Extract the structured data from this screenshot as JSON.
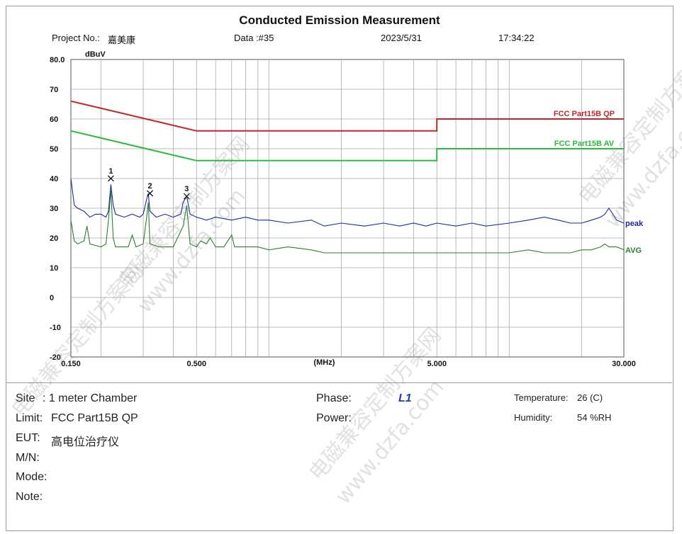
{
  "header": {
    "title": "Conducted Emission Measurement",
    "project_label": "Project No.:",
    "project_value": "嘉美康",
    "data_label": "Data :#35",
    "date": "2023/5/31",
    "time": "17:34:22"
  },
  "chart_data": {
    "type": "line",
    "title": "Conducted Emission Measurement",
    "ylabel": "dBuV",
    "xlabel": "(MHz)",
    "xscale": "log",
    "xlim": [
      0.15,
      30.0
    ],
    "ylim": [
      -20,
      80
    ],
    "y_ticks": [
      "80.0",
      "70",
      "60",
      "50",
      "40",
      "30",
      "20",
      "10",
      "0",
      "-10",
      "-20"
    ],
    "x_ticks": [
      {
        "value": 0.15,
        "label": "0.150"
      },
      {
        "value": 0.5,
        "label": "0.500"
      },
      {
        "value": 5.0,
        "label": "5.000"
      },
      {
        "value": 30.0,
        "label": "30.000"
      }
    ],
    "grid": true,
    "limits": [
      {
        "name": "FCC Part15B QP",
        "color": "#c0282d",
        "points": [
          [
            0.15,
            66
          ],
          [
            0.5,
            56
          ],
          [
            5.0,
            56
          ],
          [
            5.0,
            60
          ],
          [
            30.0,
            60
          ]
        ]
      },
      {
        "name": "FCC Part15B AV",
        "color": "#2dbb3e",
        "points": [
          [
            0.15,
            56
          ],
          [
            0.5,
            46
          ],
          [
            5.0,
            46
          ],
          [
            5.0,
            50
          ],
          [
            30.0,
            50
          ]
        ]
      }
    ],
    "series": [
      {
        "name": "peak",
        "color": "#1c2a9c",
        "points": [
          [
            0.15,
            40
          ],
          [
            0.155,
            31
          ],
          [
            0.16,
            30
          ],
          [
            0.17,
            29
          ],
          [
            0.18,
            27
          ],
          [
            0.19,
            28
          ],
          [
            0.2,
            28
          ],
          [
            0.21,
            27
          ],
          [
            0.215,
            29
          ],
          [
            0.22,
            38
          ],
          [
            0.225,
            31
          ],
          [
            0.23,
            28
          ],
          [
            0.25,
            27
          ],
          [
            0.27,
            28
          ],
          [
            0.29,
            27
          ],
          [
            0.3,
            28
          ],
          [
            0.31,
            33
          ],
          [
            0.315,
            35
          ],
          [
            0.32,
            29
          ],
          [
            0.34,
            27
          ],
          [
            0.37,
            28
          ],
          [
            0.4,
            27
          ],
          [
            0.43,
            28
          ],
          [
            0.44,
            32
          ],
          [
            0.455,
            34
          ],
          [
            0.47,
            28
          ],
          [
            0.5,
            27
          ],
          [
            0.55,
            26
          ],
          [
            0.6,
            27
          ],
          [
            0.7,
            26
          ],
          [
            0.8,
            27
          ],
          [
            0.9,
            26
          ],
          [
            1.0,
            26
          ],
          [
            1.2,
            25
          ],
          [
            1.5,
            26
          ],
          [
            1.7,
            24
          ],
          [
            2.0,
            25
          ],
          [
            2.5,
            24
          ],
          [
            3.0,
            25
          ],
          [
            3.5,
            24
          ],
          [
            4.0,
            25
          ],
          [
            4.5,
            24
          ],
          [
            5.0,
            25
          ],
          [
            6.0,
            24
          ],
          [
            7.0,
            25
          ],
          [
            8.0,
            24
          ],
          [
            10.0,
            25
          ],
          [
            12.0,
            26
          ],
          [
            14.0,
            27
          ],
          [
            16.0,
            26
          ],
          [
            18.0,
            25
          ],
          [
            20.0,
            25
          ],
          [
            22.0,
            26
          ],
          [
            24.0,
            27
          ],
          [
            25.0,
            28
          ],
          [
            26.0,
            30
          ],
          [
            27.0,
            28
          ],
          [
            28.0,
            26
          ],
          [
            30.0,
            25
          ]
        ]
      },
      {
        "name": "AVG",
        "color": "#2e7d32",
        "points": [
          [
            0.15,
            26
          ],
          [
            0.155,
            19
          ],
          [
            0.16,
            18
          ],
          [
            0.17,
            19
          ],
          [
            0.175,
            24
          ],
          [
            0.18,
            18
          ],
          [
            0.2,
            17
          ],
          [
            0.21,
            18
          ],
          [
            0.215,
            26
          ],
          [
            0.22,
            36
          ],
          [
            0.225,
            20
          ],
          [
            0.23,
            17
          ],
          [
            0.26,
            17
          ],
          [
            0.27,
            21
          ],
          [
            0.28,
            17
          ],
          [
            0.3,
            18
          ],
          [
            0.31,
            27
          ],
          [
            0.315,
            32
          ],
          [
            0.32,
            18
          ],
          [
            0.35,
            17
          ],
          [
            0.4,
            17
          ],
          [
            0.44,
            24
          ],
          [
            0.455,
            31
          ],
          [
            0.47,
            18
          ],
          [
            0.5,
            17
          ],
          [
            0.52,
            19
          ],
          [
            0.55,
            18
          ],
          [
            0.57,
            20
          ],
          [
            0.6,
            17
          ],
          [
            0.65,
            17
          ],
          [
            0.7,
            21
          ],
          [
            0.72,
            17
          ],
          [
            0.8,
            17
          ],
          [
            0.9,
            17
          ],
          [
            1.0,
            16
          ],
          [
            1.2,
            17
          ],
          [
            1.5,
            16
          ],
          [
            1.7,
            15
          ],
          [
            2.0,
            15
          ],
          [
            2.5,
            15
          ],
          [
            3.0,
            15
          ],
          [
            4.0,
            15
          ],
          [
            5.0,
            15
          ],
          [
            6.0,
            15
          ],
          [
            8.0,
            15
          ],
          [
            10.0,
            15
          ],
          [
            12.0,
            16
          ],
          [
            14.0,
            15
          ],
          [
            16.0,
            15
          ],
          [
            18.0,
            15
          ],
          [
            20.0,
            16
          ],
          [
            22.0,
            16
          ],
          [
            24.0,
            17
          ],
          [
            25.0,
            18
          ],
          [
            26.0,
            17
          ],
          [
            28.0,
            17
          ],
          [
            30.0,
            16
          ]
        ]
      }
    ],
    "markers": [
      {
        "label": "1",
        "x": 0.22,
        "y": 40
      },
      {
        "label": "2",
        "x": 0.32,
        "y": 35
      },
      {
        "label": "3",
        "x": 0.455,
        "y": 34
      }
    ]
  },
  "info": {
    "site_label": "Site",
    "site_value": ": 1 meter Chamber",
    "limit_label": "Limit:",
    "limit_value": "FCC  Part15B  QP",
    "eut_label": "EUT:",
    "eut_value": "高电位治疗仪",
    "mn_label": "M/N:",
    "mode_label": "Mode:",
    "note_label": "Note:",
    "phase_label": "Phase:",
    "phase_value": "L1",
    "power_label": "Power:",
    "temperature_label": "Temperature:",
    "temperature_value": "26 (C)",
    "humidity_label": "Humidity:",
    "humidity_value": "54 %RH"
  },
  "watermarks": [
    "电磁兼容定制方案网",
    "www.dzfa.com"
  ]
}
